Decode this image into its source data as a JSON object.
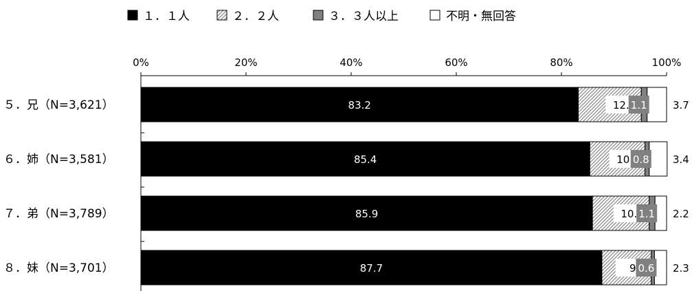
{
  "chart_data": {
    "type": "bar",
    "orientation": "horizontal",
    "stacked": true,
    "percent_axis": true,
    "legend_position": "top",
    "grid": false,
    "xlim": [
      0,
      100
    ],
    "x_ticks": [
      "0%",
      "20%",
      "40%",
      "60%",
      "80%",
      "100%"
    ],
    "categories": [
      "５．兄（N=3,621）",
      "６．姉（N=3,581）",
      "７．弟（N=3,789）",
      "８．妹（N=3,701）"
    ],
    "series": [
      {
        "name": "１．１人",
        "fill": "solid",
        "color": "#000000",
        "values": [
          83.2,
          85.4,
          85.9,
          87.7
        ],
        "labels": [
          "83.2",
          "85.4",
          "85.9",
          "87.7"
        ]
      },
      {
        "name": "２．２人",
        "fill": "hatch",
        "color": "#9a9a9a",
        "values": [
          12.0,
          10.5,
          10.8,
          9.4
        ],
        "labels": [
          "12.0",
          "10.5",
          "10.8",
          "9.4"
        ]
      },
      {
        "name": "３．３人以上",
        "fill": "solid",
        "color": "#808080",
        "values": [
          1.1,
          0.8,
          1.1,
          0.6
        ],
        "labels": [
          "1.1",
          "0.8",
          "1.1",
          "0.6"
        ]
      },
      {
        "name": "不明・無回答",
        "fill": "solid",
        "color": "#ffffff",
        "values": [
          3.7,
          3.4,
          2.2,
          2.3
        ],
        "labels": [
          "3.7",
          "3.4",
          "2.2",
          "2.3"
        ]
      }
    ]
  }
}
